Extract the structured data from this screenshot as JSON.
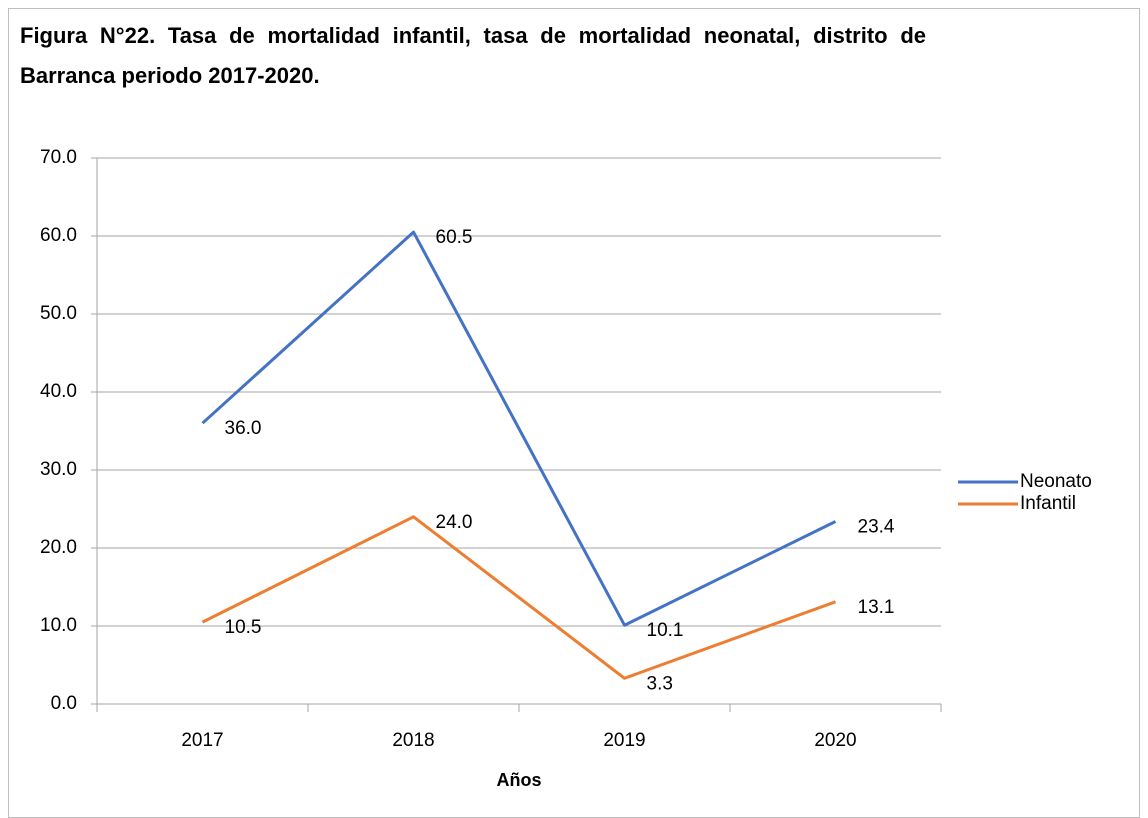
{
  "chart_data": {
    "type": "line",
    "title": "Figura N°22. Tasa de mortalidad infantil, tasa de mortalidad neonatal, distrito de Barranca periodo 2017-2020.",
    "x_label": "Años",
    "categories": [
      "2017",
      "2018",
      "2019",
      "2020"
    ],
    "series": [
      {
        "name": "Neonato",
        "color": "#4472c4",
        "values": [
          36.0,
          60.5,
          10.1,
          23.4
        ],
        "value_labels": [
          "36.0",
          "60.5",
          "10.1",
          "23.4"
        ]
      },
      {
        "name": "Infantil",
        "color": "#ed7d31",
        "values": [
          10.5,
          24.0,
          3.3,
          13.1
        ],
        "value_labels": [
          "10.5",
          "24.0",
          "3.3",
          "13.1"
        ]
      }
    ],
    "ylim": [
      0,
      70
    ],
    "yticks": [
      {
        "value": 0,
        "label": "0.0"
      },
      {
        "value": 10,
        "label": "10.0"
      },
      {
        "value": 20,
        "label": "20.0"
      },
      {
        "value": 30,
        "label": "30.0"
      },
      {
        "value": 40,
        "label": "40.0"
      },
      {
        "value": 50,
        "label": "50.0"
      },
      {
        "value": 60,
        "label": "60.0"
      },
      {
        "value": 70,
        "label": "70.0"
      }
    ],
    "grid": true,
    "legend": "right"
  }
}
